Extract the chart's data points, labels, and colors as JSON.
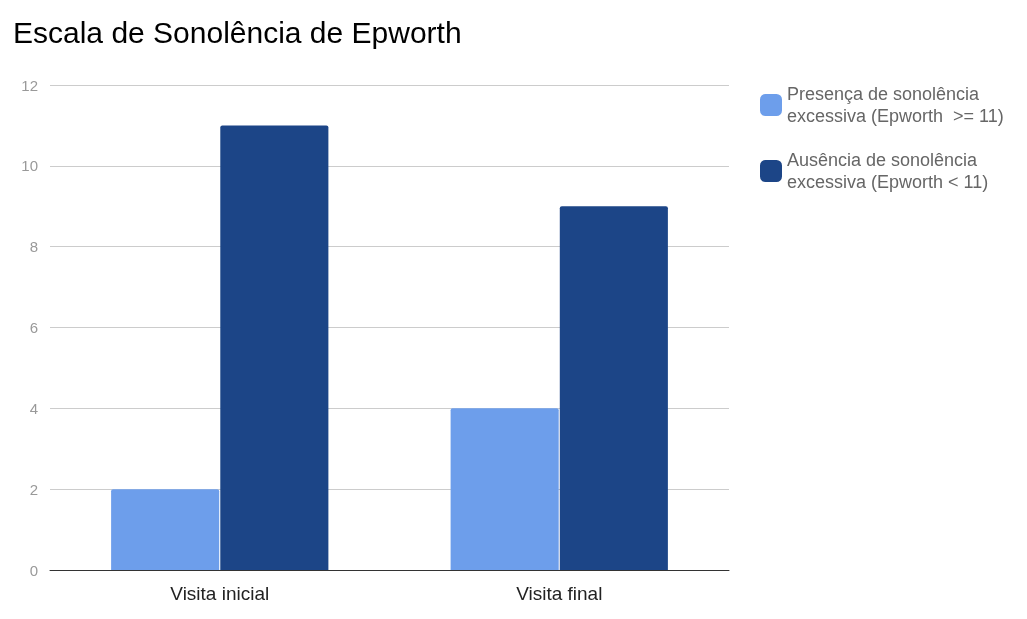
{
  "chart_data": {
    "type": "bar",
    "title": "Escala de Sonolência de Epworth",
    "categories": [
      "Visita inicial",
      "Visita final"
    ],
    "series": [
      {
        "name": "Presença de sonolência excessiva (Epworth  >= 11)",
        "color": "#6d9eeb",
        "values": [
          2,
          4
        ]
      },
      {
        "name": "Ausência de sonolência excessiva (Epworth < 11)",
        "color": "#1c4587",
        "values": [
          11,
          9
        ]
      }
    ],
    "ylim": [
      0,
      12
    ],
    "yticks": [
      0,
      2,
      4,
      6,
      8,
      10,
      12
    ],
    "grid": "y",
    "legend": "right"
  }
}
